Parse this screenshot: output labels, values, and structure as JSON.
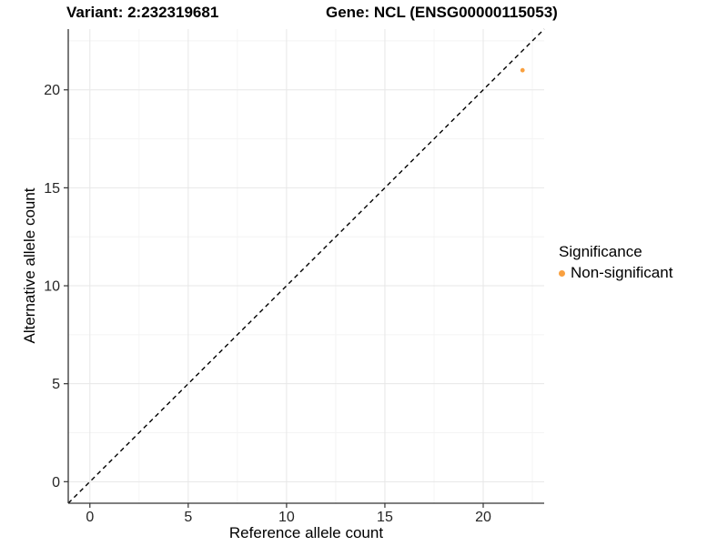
{
  "title": {
    "variant": "Variant: 2:232319681",
    "gene": "Gene: NCL (ENSG00000115053)"
  },
  "legend": {
    "title": "Significance",
    "items": [
      {
        "label": "Non-significant",
        "color": "#F9A03F",
        "marker": "filled-circle"
      }
    ]
  },
  "chart_data": {
    "type": "scatter",
    "title": "Variant: 2:232319681   Gene: NCL (ENSG00000115053)",
    "xlabel": "Reference allele count",
    "ylabel": "Alternative allele count",
    "xlim": [
      -1.1,
      23.1
    ],
    "ylim": [
      -1.1,
      23.1
    ],
    "x_ticks": [
      0,
      5,
      10,
      15,
      20
    ],
    "y_ticks": [
      0,
      5,
      10,
      15,
      20
    ],
    "x_minor_ticks": [
      2.5,
      7.5,
      12.5,
      17.5,
      22.5
    ],
    "y_minor_ticks": [
      2.5,
      7.5,
      12.5,
      17.5,
      22.5
    ],
    "grid": true,
    "legend_position": "right",
    "series": [
      {
        "name": "Non-significant",
        "color": "#F9A03F",
        "points": [
          {
            "x": 22,
            "y": 21
          }
        ]
      }
    ],
    "reference_line": {
      "kind": "identity",
      "slope": 1,
      "intercept": 0,
      "line_style": "dashed",
      "color": "#000000"
    }
  },
  "colors": {
    "background": "#FFFFFF",
    "axis_line": "#333333",
    "tick_mark": "#333333",
    "tick_label": "#262626",
    "grid_major": "#E7E7E7",
    "grid_minor": "#F4F4F4",
    "dashed_line": "#000000",
    "point": "#F9A03F"
  }
}
